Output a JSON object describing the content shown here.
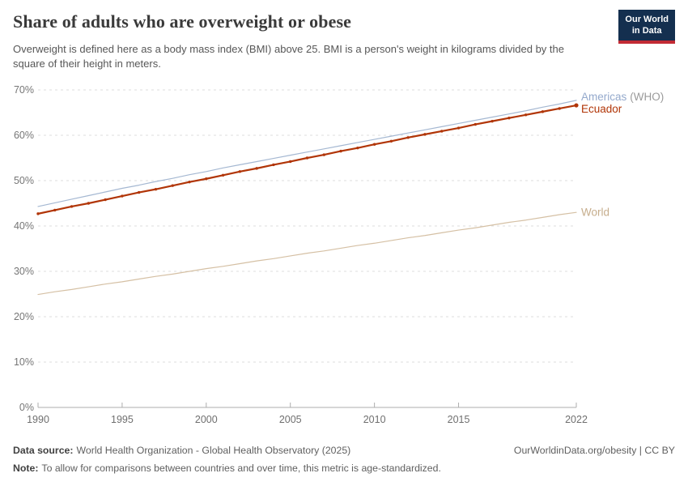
{
  "header": {
    "title": "Share of adults who are overweight or obese",
    "subtitle": "Overweight is defined here as a body mass index (BMI) above 25. BMI is a person's weight in kilograms divided by the square of their height in meters.",
    "logo": {
      "line1": "Our World",
      "line2": "in Data",
      "bg_color": "#142f4f",
      "accent_color": "#c22b35"
    }
  },
  "chart_data": {
    "type": "line",
    "title": "Share of adults who are overweight or obese",
    "xlabel": "",
    "ylabel": "",
    "ylim": [
      0,
      70
    ],
    "xlim": [
      1990,
      2022
    ],
    "grid": "horizontal-dashed",
    "legend_position": "right-end-labels",
    "ytick_values": [
      0,
      10,
      20,
      30,
      40,
      50,
      60,
      70
    ],
    "ytick_labels": [
      "0%",
      "10%",
      "20%",
      "30%",
      "40%",
      "50%",
      "60%",
      "70%"
    ],
    "xtick_values": [
      1990,
      1995,
      2000,
      2005,
      2010,
      2015,
      2022
    ],
    "x": [
      1990,
      1991,
      1992,
      1993,
      1994,
      1995,
      1996,
      1997,
      1998,
      1999,
      2000,
      2001,
      2002,
      2003,
      2004,
      2005,
      2006,
      2007,
      2008,
      2009,
      2010,
      2011,
      2012,
      2013,
      2014,
      2015,
      2016,
      2017,
      2018,
      2019,
      2020,
      2021,
      2022
    ],
    "series": [
      {
        "name": "World",
        "label": "World",
        "label_suffix": "",
        "color": "#d5c0a4",
        "label_color": "#c6ad8c",
        "suffix_color": "#9a9a9a",
        "line_width": 1.2,
        "markers": false,
        "values": [
          24.9,
          25.5,
          26.0,
          26.6,
          27.2,
          27.7,
          28.3,
          28.9,
          29.4,
          30.0,
          30.6,
          31.1,
          31.7,
          32.3,
          32.8,
          33.4,
          34.0,
          34.5,
          35.1,
          35.7,
          36.2,
          36.8,
          37.4,
          37.9,
          38.5,
          39.1,
          39.6,
          40.2,
          40.8,
          41.3,
          41.9,
          42.5,
          43.0
        ]
      },
      {
        "name": "Americas (WHO)",
        "label": "Americas",
        "label_suffix": "(WHO)",
        "color": "#a5b8d2",
        "label_color": "#94a9cc",
        "suffix_color": "#9a9a9a",
        "line_width": 1.2,
        "markers": false,
        "values": [
          44.3,
          45.1,
          45.9,
          46.7,
          47.5,
          48.3,
          49.0,
          49.8,
          50.5,
          51.3,
          52.0,
          52.8,
          53.5,
          54.2,
          54.9,
          55.6,
          56.3,
          57.0,
          57.7,
          58.4,
          59.1,
          59.8,
          60.5,
          61.2,
          61.9,
          62.6,
          63.3,
          64.0,
          64.7,
          65.4,
          66.2,
          66.9,
          67.7
        ]
      },
      {
        "name": "Ecuador",
        "label": "Ecuador",
        "label_suffix": "",
        "color": "#b13507",
        "label_color": "#b13507",
        "suffix_color": "#9a9a9a",
        "line_width": 2.2,
        "markers": true,
        "bold_label": true,
        "values": [
          42.7,
          43.5,
          44.3,
          45.0,
          45.8,
          46.6,
          47.4,
          48.1,
          48.9,
          49.7,
          50.4,
          51.2,
          52.0,
          52.7,
          53.5,
          54.2,
          55.0,
          55.7,
          56.5,
          57.2,
          58.0,
          58.7,
          59.5,
          60.2,
          60.9,
          61.6,
          62.4,
          63.1,
          63.8,
          64.5,
          65.2,
          65.9,
          66.6
        ]
      }
    ]
  },
  "footer": {
    "datasource_label": "Data source:",
    "datasource_text": "World Health Organization - Global Health Observatory (2025)",
    "right_text": "OurWorldinData.org/obesity | CC BY",
    "note_label": "Note:",
    "note_text": "To allow for comparisons between countries and over time, this metric is age-standardized."
  },
  "colors": {
    "gridline": "#dcdcdc",
    "axis": "#adadad",
    "title": "#3a3a3a",
    "subtitle": "#575757"
  }
}
